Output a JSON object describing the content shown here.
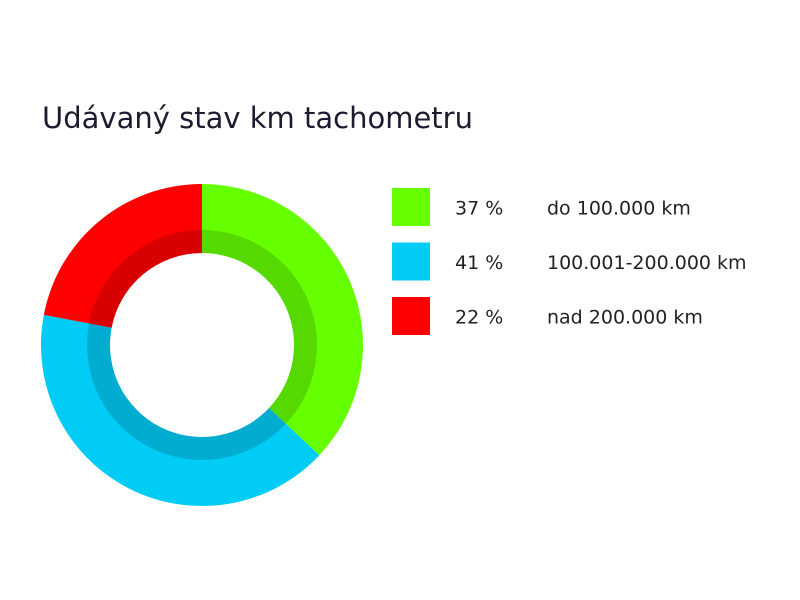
{
  "chart_data": {
    "type": "donut",
    "title": "Udávaný stav km tachometru",
    "categories": [
      "do 100.000 km",
      "100.001-200.000 km",
      "nad 200.000 km"
    ],
    "values": [
      37,
      41,
      22
    ],
    "value_labels": [
      "37 %",
      "41 %",
      "22 %"
    ],
    "colors": [
      "#66ff00",
      "#00ccf5",
      "#ff0000"
    ]
  }
}
